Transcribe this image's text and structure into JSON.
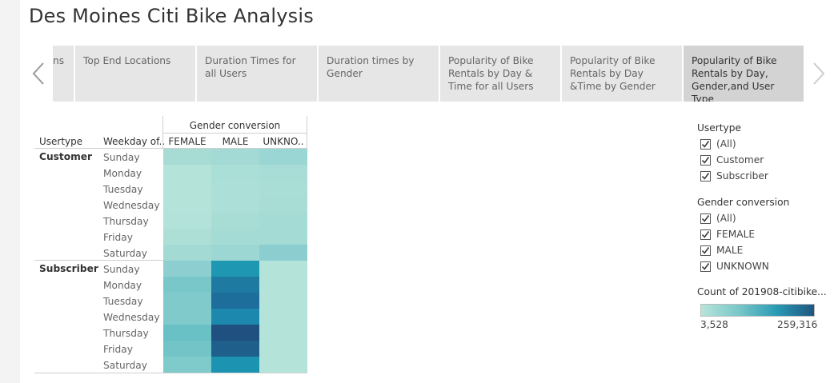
{
  "page": {
    "title": "Des Moines Citi Bike Analysis"
  },
  "story": {
    "tabs": [
      {
        "label": "ns"
      },
      {
        "label": "Top End Locations"
      },
      {
        "label": "Duration Times for all Users"
      },
      {
        "label": "Duration times by Gender"
      },
      {
        "label": "Popularity of Bike Rentals by Day & Time for all Users"
      },
      {
        "label": "Popularity of Bike Rentals by Day &Time by Gender"
      },
      {
        "label": "Popularity of Bike Rentals by Day, Gender,and User Type",
        "active": true
      }
    ]
  },
  "crosstab": {
    "column_group_header": "Gender conversion",
    "row_header_usertype": "Usertype",
    "row_header_weekday": "Weekday of..",
    "columns": [
      "FEMALE",
      "MALE",
      "UNKNO.."
    ],
    "groups": [
      {
        "usertype": "Customer",
        "rows": [
          {
            "day": "Sunday",
            "colors": [
              "#a6dcd4",
              "#a3dad5",
              "#9ad6d4"
            ]
          },
          {
            "day": "Monday",
            "colors": [
              "#b3e3d9",
              "#aadfd7",
              "#a7ddd6"
            ]
          },
          {
            "day": "Tuesday",
            "colors": [
              "#b3e3d9",
              "#abdfd7",
              "#a9ded6"
            ]
          },
          {
            "day": "Wednesday",
            "colors": [
              "#b4e3d9",
              "#abdfd7",
              "#a8ddd6"
            ]
          },
          {
            "day": "Thursday",
            "colors": [
              "#b2e2d9",
              "#a8ddd6",
              "#a4dbd5"
            ]
          },
          {
            "day": "Friday",
            "colors": [
              "#addfd7",
              "#a5dbd5",
              "#a4dbd5"
            ]
          },
          {
            "day": "Saturday",
            "colors": [
              "#a3dad4",
              "#9dd7d3",
              "#8cced0"
            ]
          }
        ]
      },
      {
        "usertype": "Subscriber",
        "rows": [
          {
            "day": "Sunday",
            "colors": [
              "#8dcfd0",
              "#1e97b2",
              "#b4e3d9"
            ]
          },
          {
            "day": "Monday",
            "colors": [
              "#7ac7c9",
              "#1f7aa2",
              "#b4e3d9"
            ]
          },
          {
            "day": "Tuesday",
            "colors": [
              "#80cacb",
              "#1d6e9b",
              "#b4e3d9"
            ]
          },
          {
            "day": "Wednesday",
            "colors": [
              "#80cacb",
              "#1d88ad",
              "#b4e3d9"
            ]
          },
          {
            "day": "Thursday",
            "colors": [
              "#69c0c5",
              "#1f5080",
              "#b4e3d9"
            ]
          },
          {
            "day": "Friday",
            "colors": [
              "#73c4c7",
              "#1f5f8c",
              "#b4e3d9"
            ]
          },
          {
            "day": "Saturday",
            "colors": [
              "#7fcaca",
              "#1c93b1",
              "#b4e3d9"
            ]
          }
        ]
      }
    ]
  },
  "filters": {
    "usertype": {
      "title": "Usertype",
      "items": [
        {
          "label": "(All)",
          "checked": true
        },
        {
          "label": "Customer",
          "checked": true
        },
        {
          "label": "Subscriber",
          "checked": true
        }
      ]
    },
    "gender": {
      "title": "Gender conversion",
      "items": [
        {
          "label": "(All)",
          "checked": true
        },
        {
          "label": "FEMALE",
          "checked": true
        },
        {
          "label": "MALE",
          "checked": true
        },
        {
          "label": "UNKNOWN",
          "checked": true
        }
      ]
    }
  },
  "legend": {
    "title": "Count of 201908-citibike...",
    "min_label": "3,528",
    "max_label": "259,316",
    "colors": [
      "#b6e4da",
      "#79c7c9",
      "#2a9bb5",
      "#1f5580"
    ]
  }
}
